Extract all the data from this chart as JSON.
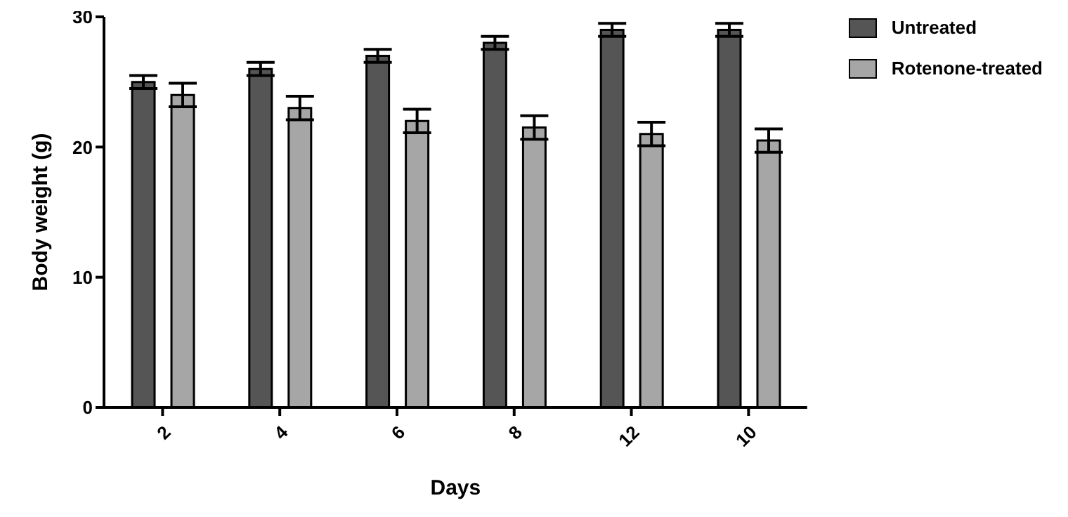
{
  "chart_data": {
    "type": "bar",
    "xlabel": "Days",
    "ylabel": "Body weight (g)",
    "categories": [
      "2",
      "4",
      "6",
      "8",
      "12",
      "10"
    ],
    "series": [
      {
        "name": "Untreated",
        "color": "#555555",
        "values": [
          25,
          26,
          27,
          28,
          29,
          29
        ],
        "errors": [
          0.5,
          0.5,
          0.5,
          0.5,
          0.5,
          0.5
        ]
      },
      {
        "name": "Rotenone-treated",
        "color": "#a6a6a6",
        "values": [
          24,
          23,
          22,
          21.5,
          21,
          20.5
        ],
        "errors": [
          0.9,
          0.9,
          0.9,
          0.9,
          0.9,
          0.9
        ]
      }
    ],
    "ylim": [
      0,
      30
    ],
    "yticks": [
      0,
      10,
      20,
      30
    ],
    "grid": false,
    "legend": "top right"
  }
}
